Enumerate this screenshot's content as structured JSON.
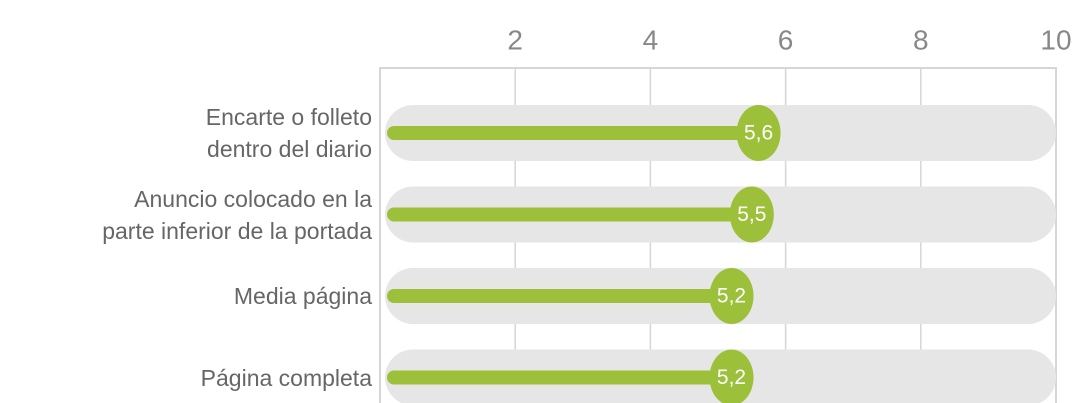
{
  "chart_data": {
    "type": "bar",
    "orientation": "horizontal",
    "categories": [
      "Encarte o folleto\ndentro del diario",
      "Anuncio colocado en la\nparte inferior de la portada",
      "Media página",
      "Página completa"
    ],
    "values": [
      5.6,
      5.5,
      5.2,
      5.2
    ],
    "value_labels": [
      "5,6",
      "5,5",
      "5,2",
      "5,2"
    ],
    "color": "#9dc03a",
    "xlim": [
      0,
      10
    ],
    "xticks": [
      2,
      4,
      6,
      8,
      10
    ],
    "grid": true
  }
}
